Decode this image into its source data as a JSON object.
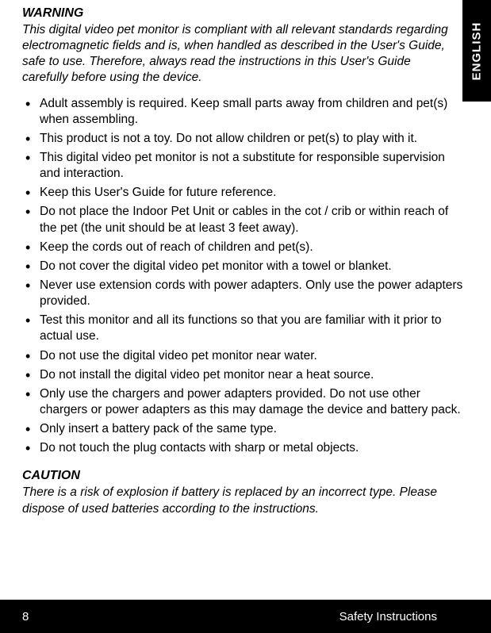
{
  "sideTab": "ENGLISH",
  "warning": {
    "title": "WARNING",
    "body": "This digital video pet monitor is compliant with all relevant standards regarding electromagnetic fields and is, when handled as described in the User's Guide, safe to use. Therefore, always read the instructions in this User's Guide carefully before using the device."
  },
  "bullets": [
    "Adult assembly is required. Keep small parts away from children and pet(s) when assembling.",
    "This product is not a toy. Do not allow children or pet(s) to play with it.",
    "This digital video pet monitor is not a substitute for responsible supervision and interaction.",
    "Keep this User's Guide for future reference.",
    "Do not place the Indoor Pet Unit or cables in the cot / crib or within reach of the pet (the unit should be at least 3 feet away).",
    "Keep the cords out of reach of children and pet(s).",
    "Do not cover the digital video pet monitor with a towel or blanket.",
    "Never use extension cords with power adapters. Only use the power adapters provided.",
    "Test this monitor and all its functions so that you are familiar with it prior to actual use.",
    "Do not use the digital video pet monitor near water.",
    "Do not install the digital video pet monitor near a heat source.",
    "Only use the chargers and power adapters provided. Do not use other chargers or power adapters as this may damage the device and battery pack.",
    "Only insert a battery pack of the same type.",
    "Do not touch the plug contacts with sharp or metal objects."
  ],
  "caution": {
    "title": "CAUTION",
    "body": "There is a risk of explosion if battery is replaced by an incorrect type. Please dispose of used batteries according to the instructions."
  },
  "footer": {
    "pageNumber": "8",
    "sectionLabel": "Safety Instructions"
  },
  "colors": {
    "pageBg": "#ffffff",
    "text": "#000000",
    "tabBg": "#000000",
    "tabText": "#ffffff",
    "footerBg": "#000000",
    "footerText": "#ffffff"
  },
  "typography": {
    "bodyFontSize": 15.5,
    "titleFontSize": 16,
    "footerFontSize": 15,
    "sideTabFontSize": 15
  }
}
